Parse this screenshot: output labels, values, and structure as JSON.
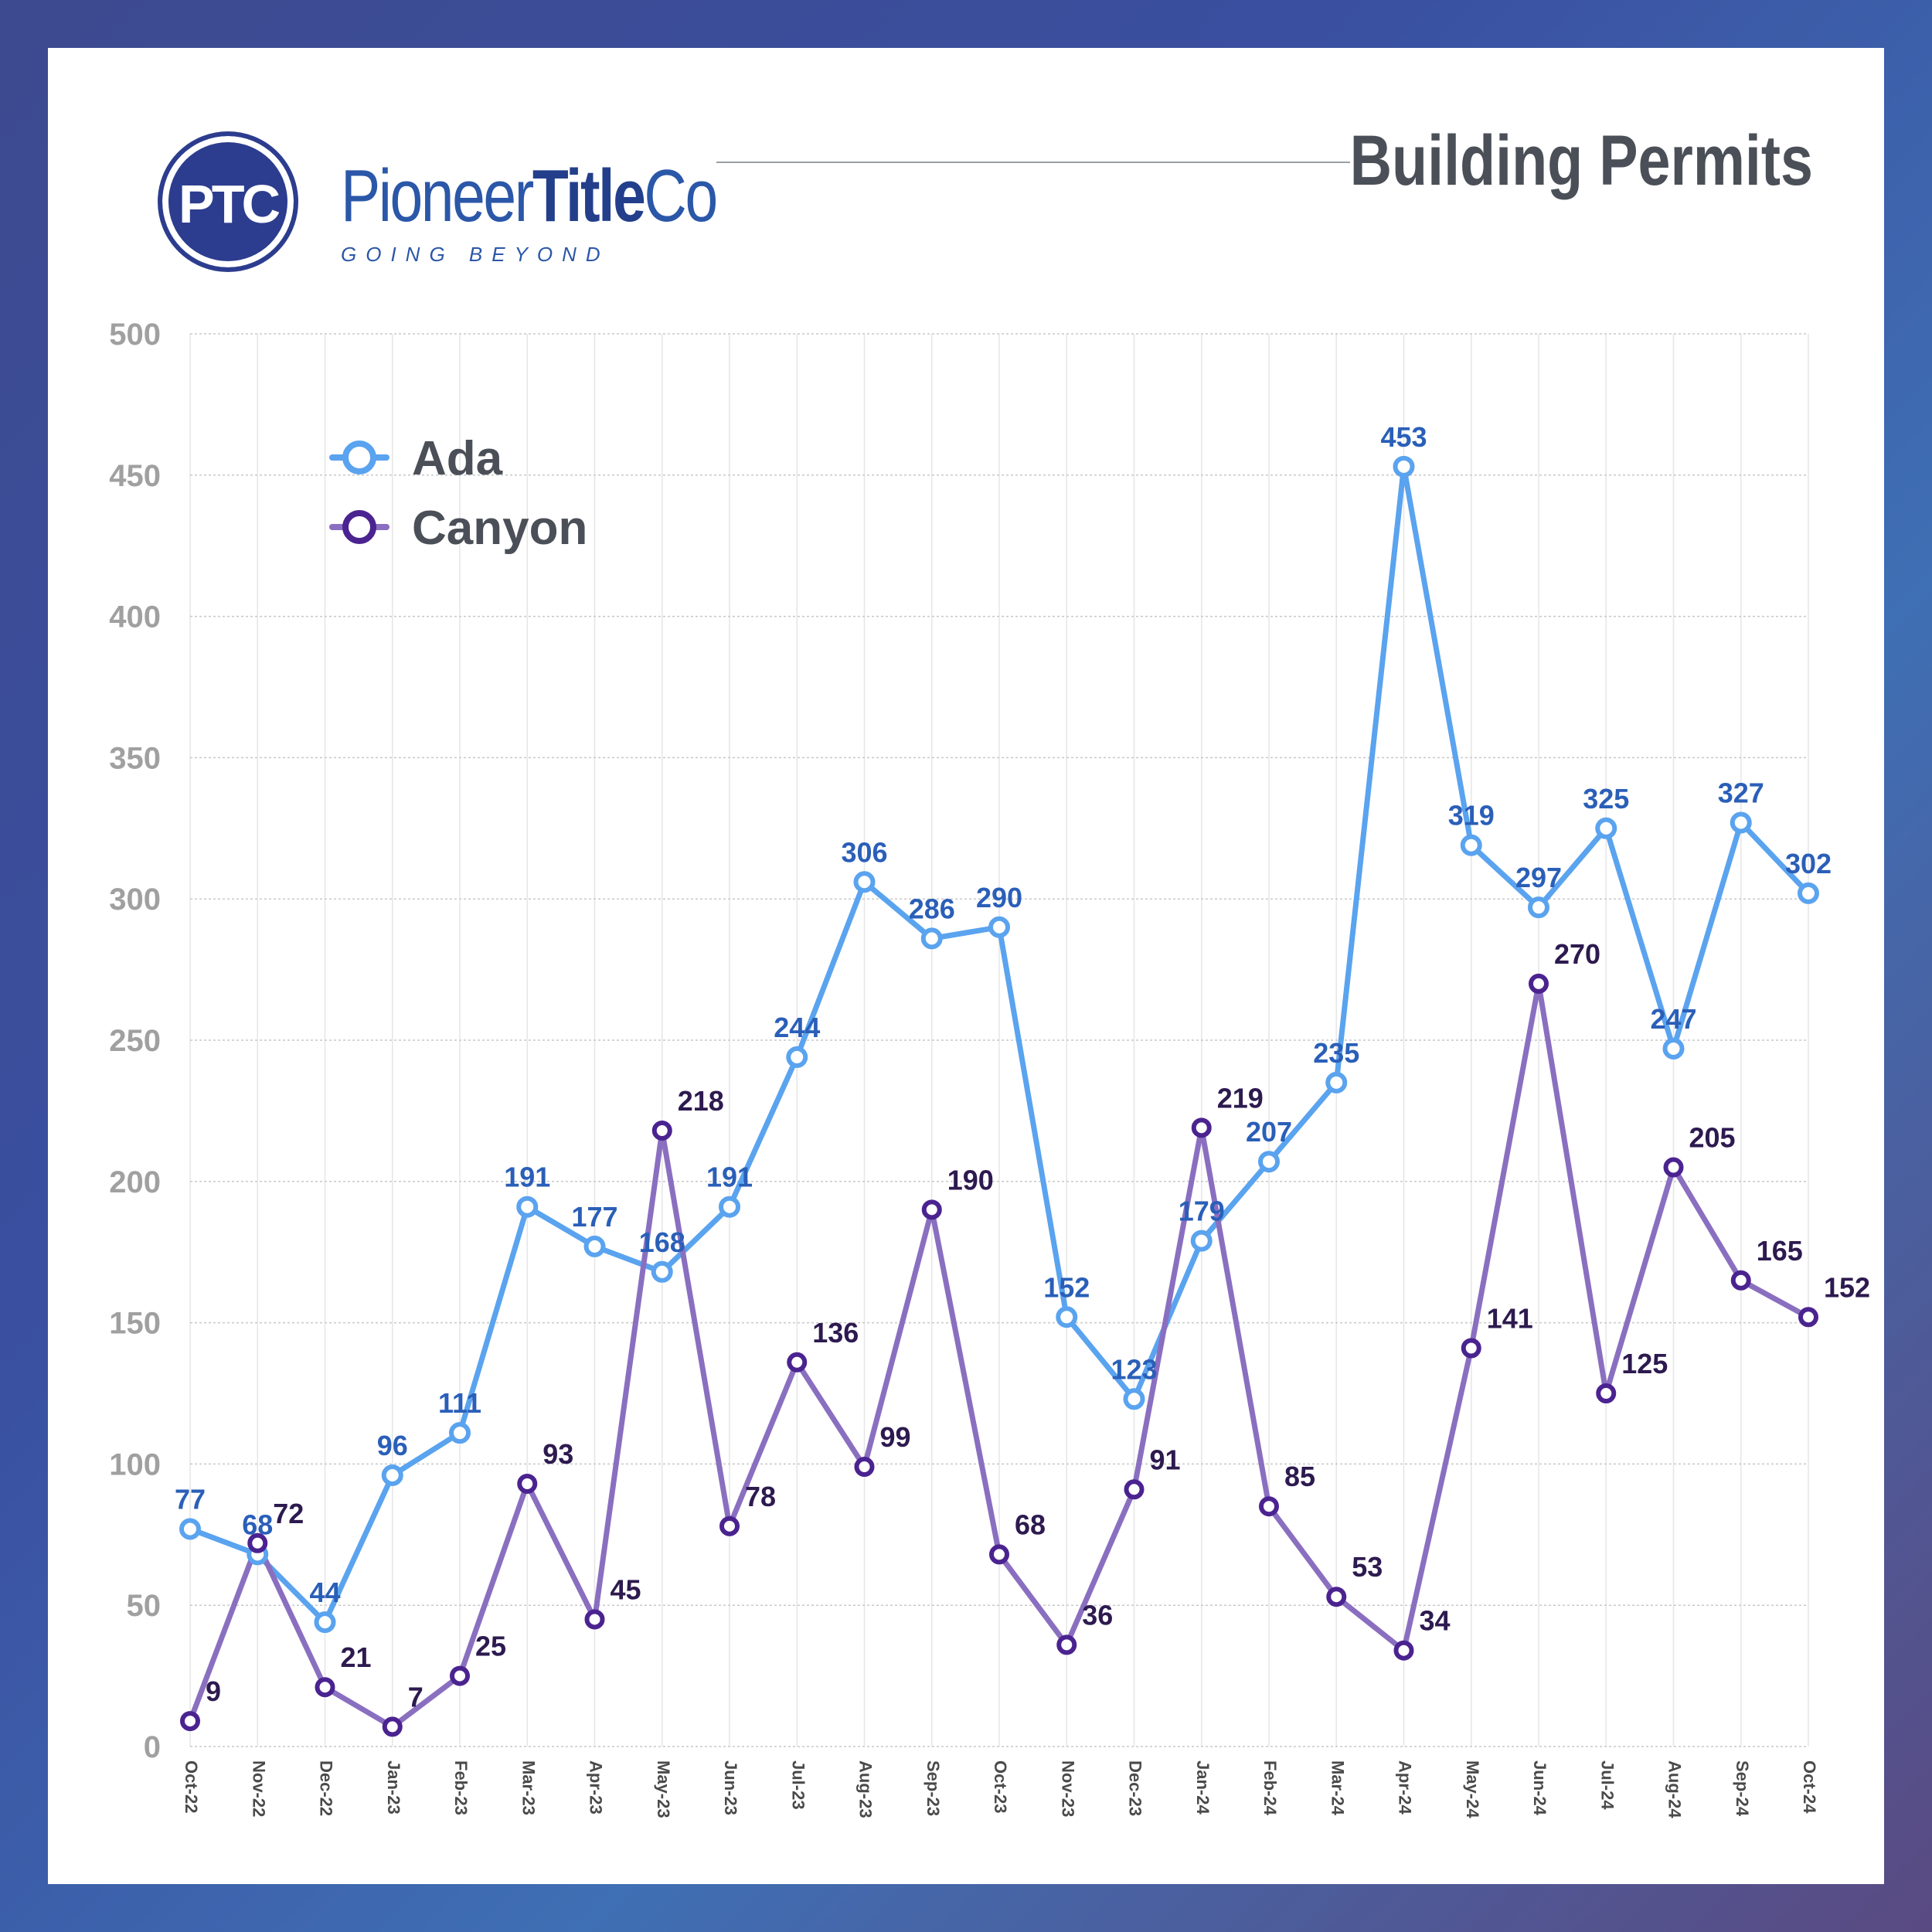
{
  "header": {
    "logo_mark": "PTC",
    "logo_name_regular": "Pioneer",
    "logo_name_bold": "Title",
    "logo_name_suffix": "Co",
    "logo_tagline": "GOING BEYOND",
    "title": "Building Permits"
  },
  "colors": {
    "ada": "#5aa3ef",
    "ada_label": "#2a5fb8",
    "canyon": "#8a6fc0",
    "canyon_marker": "#4b2390",
    "canyon_label": "#2d1a4f",
    "axis_text": "#a0a0a0",
    "grid": "#c8c8c8"
  },
  "chart_data": {
    "type": "line",
    "categories": [
      "Oct-22",
      "Nov-22",
      "Dec-22",
      "Jan-23",
      "Feb-23",
      "Mar-23",
      "Apr-23",
      "May-23",
      "Jun-23",
      "Jul-23",
      "Aug-23",
      "Sep-23",
      "Oct-23",
      "Nov-23",
      "Dec-23",
      "Jan-24",
      "Feb-24",
      "Mar-24",
      "Apr-24",
      "May-24",
      "Jun-24",
      "Jul-24",
      "Aug-24",
      "Sep-24",
      "Oct-24"
    ],
    "series": [
      {
        "name": "Ada",
        "values": [
          77,
          68,
          44,
          96,
          111,
          191,
          177,
          168,
          191,
          244,
          306,
          286,
          290,
          152,
          123,
          179,
          207,
          235,
          453,
          319,
          297,
          325,
          247,
          327,
          302
        ]
      },
      {
        "name": "Canyon",
        "values": [
          9,
          72,
          21,
          7,
          25,
          93,
          45,
          218,
          78,
          136,
          99,
          190,
          68,
          36,
          91,
          219,
          85,
          53,
          34,
          141,
          270,
          125,
          205,
          165,
          152
        ]
      }
    ],
    "ylim": [
      0,
      500
    ],
    "yticks": [
      "0",
      "50",
      "100",
      "150",
      "200",
      "250",
      "300",
      "350",
      "400",
      "450",
      "500"
    ],
    "grid": true,
    "legend": "top-left"
  }
}
